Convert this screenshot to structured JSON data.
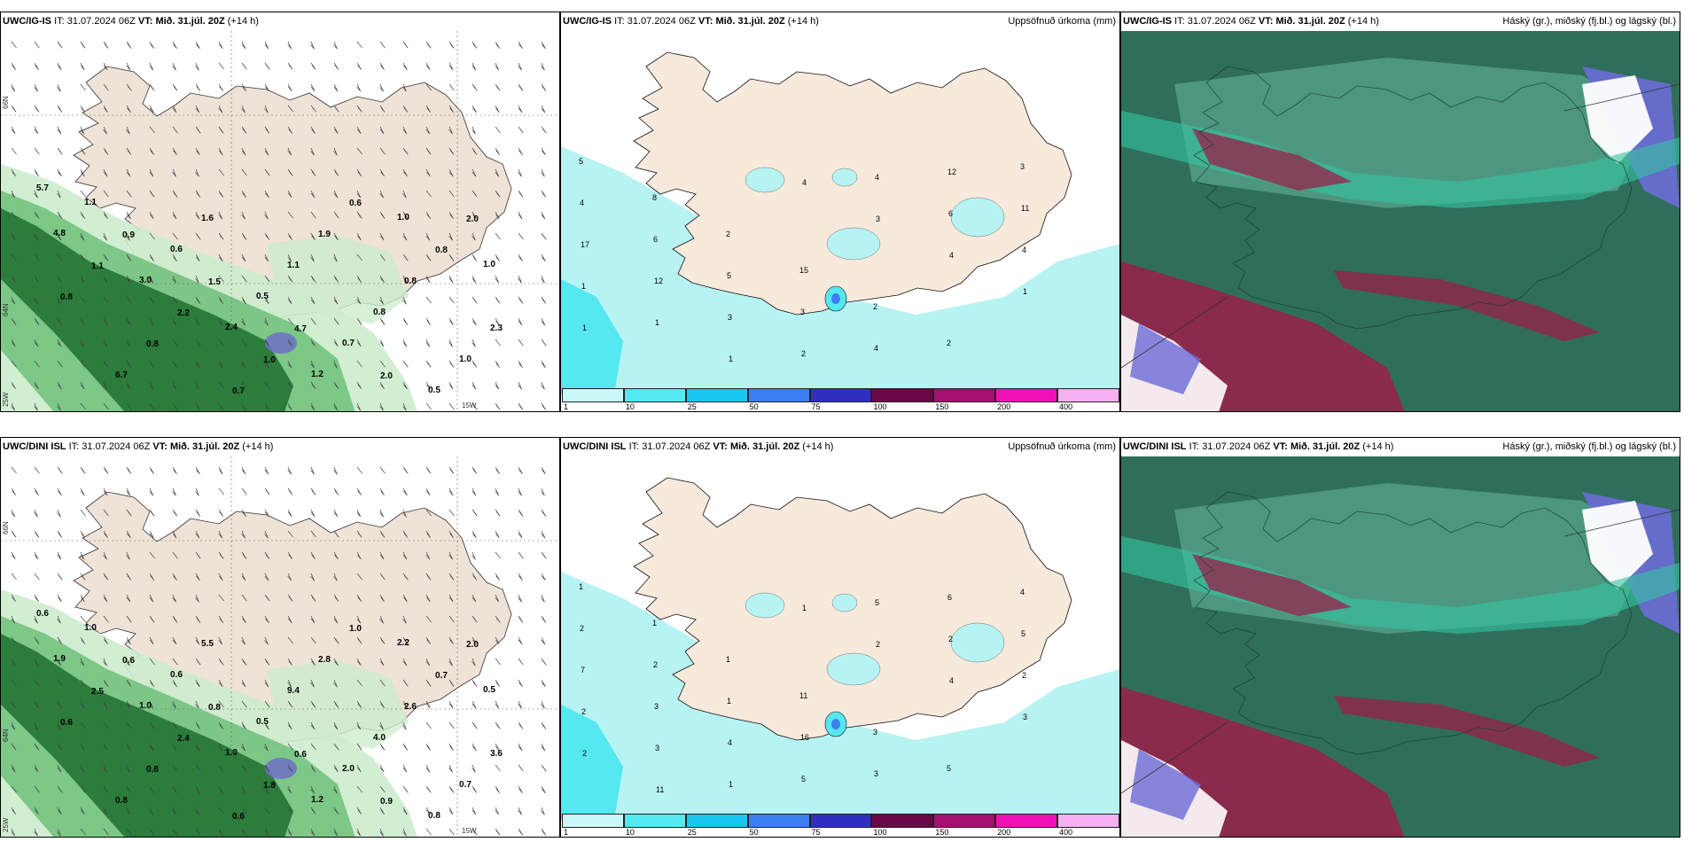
{
  "rows": [
    {
      "model": "UWC/IG-IS",
      "it_label": "IT:",
      "it_value": "31.07.2024 06Z",
      "vt_label": "VT:",
      "vt_value": "Mið. 31.júl. 20Z",
      "lead": "(+14 h)"
    },
    {
      "model": "UWC/DINI ISL",
      "it_label": "IT:",
      "it_value": "31.07.2024 06Z",
      "vt_label": "VT:",
      "vt_value": "Mið. 31.júl. 20Z",
      "lead": "(+14 h)"
    }
  ],
  "precip_title": "Uppsöfnuð úrkoma (mm)",
  "cloud_title": "Háský (gr.), miðský (fj.bl.) og lágský (bl.)",
  "wind_cloud_labels": {
    "row0": [
      "5.7",
      "0.9",
      "1.5",
      "4.7",
      "2.0",
      "2.0",
      "1.1",
      "2.2",
      "1.0",
      "0.6",
      "0.8",
      "0.8",
      "0.8",
      "0.7",
      "1.9",
      "0.8",
      "2.3",
      "6.7",
      "1.6",
      "1.1",
      "0.8",
      "1.0",
      "1.1",
      "0.6",
      "0.5",
      "0.7",
      "0.5",
      "4.8",
      "3.0",
      "2.4",
      "1.2",
      "1.0",
      "1.0"
    ],
    "row1": [
      "0.6",
      "0.6",
      "0.8",
      "0.6",
      "0.9",
      "2.0",
      "2.5",
      "2.4",
      "1.8",
      "1.0",
      "0.7",
      "0.6",
      "0.8",
      "0.6",
      "2.8",
      "2.6",
      "3.6",
      "0.8",
      "5.5",
      "9.4",
      "4.0",
      "0.7",
      "1.0",
      "0.6",
      "0.5",
      "2.0",
      "0.8",
      "1.9",
      "1.0",
      "1.0",
      "1.2",
      "2.2",
      "0.5"
    ]
  },
  "precip_labels": {
    "row0": [
      "5",
      "8",
      "2",
      "15",
      "2",
      "2",
      "3",
      "4",
      "6",
      "5",
      "3",
      "4",
      "12",
      "11",
      "17",
      "12",
      "3",
      "2",
      "4",
      "6",
      "4",
      "1",
      "1",
      "1",
      "4",
      "3",
      "4",
      "1",
      "1"
    ],
    "row1": [
      "1",
      "1",
      "1",
      "11",
      "3",
      "5",
      "4",
      "2",
      "2",
      "1",
      "16",
      "3",
      "6",
      "5",
      "7",
      "3",
      "4",
      "5",
      "5",
      "2",
      "2",
      "2",
      "3",
      "1",
      "1",
      "2",
      "4",
      "3",
      "2",
      "11"
    ]
  },
  "grid_labels": {
    "n66": "66N",
    "n64": "64N",
    "w25": "25W",
    "w15": "15W"
  },
  "colorbar": {
    "labels": [
      "1",
      "10",
      "25",
      "50",
      "75",
      "100",
      "150",
      "200",
      "400"
    ],
    "colors": [
      "#ccfafa",
      "#55e8f0",
      "#19c8f0",
      "#3b7ff2",
      "#2f2fc0",
      "#6a0848",
      "#a31070",
      "#f010b8",
      "#f5b0f0"
    ]
  },
  "colors": {
    "land": "#f7e9db",
    "wind_land": "#efe2d6",
    "cloud_base": "#2f6e5a",
    "green_light": "#cdeccd",
    "green_mid": "#6fc07a",
    "green_dark": "#1d6e2e",
    "precip_light": "#b8f3f3",
    "cloud_blue": "#6b6bd6",
    "cloud_red": "#9a1f4a",
    "cloud_teal": "#35c5a0"
  }
}
